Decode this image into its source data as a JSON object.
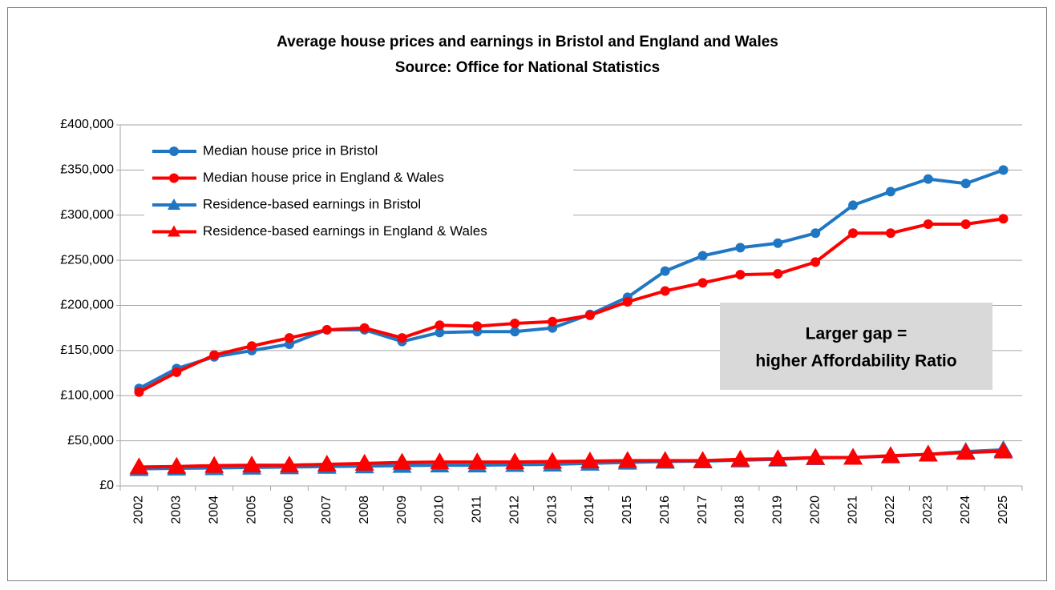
{
  "chart_data": {
    "type": "line",
    "title": "Average house prices and earnings in Bristol and England and Wales",
    "subtitle": "Source: Office for National Statistics",
    "categories": [
      "2002",
      "2003",
      "2004",
      "2005",
      "2006",
      "2007",
      "2008",
      "2009",
      "2010",
      "2011",
      "2012",
      "2013",
      "2014",
      "2015",
      "2016",
      "2017",
      "2018",
      "2019",
      "2020",
      "2021",
      "2022",
      "2023",
      "2024",
      "2025"
    ],
    "series": [
      {
        "name": "Median house price in Bristol",
        "color": "#1f77c4",
        "marker": "circle",
        "values": [
          108000,
          130000,
          143000,
          150000,
          157000,
          173000,
          173000,
          160000,
          170000,
          171000,
          171000,
          175000,
          190000,
          209000,
          238000,
          255000,
          264000,
          269000,
          280000,
          311000,
          326000,
          340000,
          335000,
          350000
        ]
      },
      {
        "name": "Median house price in England & Wales",
        "color": "#ff0000",
        "marker": "circle",
        "values": [
          104000,
          126000,
          145000,
          155000,
          164000,
          173000,
          175000,
          164000,
          178000,
          177000,
          180000,
          182000,
          189000,
          204000,
          216000,
          225000,
          234000,
          235000,
          248000,
          280000,
          280000,
          290000,
          290000,
          296000
        ]
      },
      {
        "name": "Residence-based earnings in Bristol",
        "color": "#1f77c4",
        "marker": "triangle",
        "values": [
          19000,
          19500,
          20000,
          20500,
          21000,
          21500,
          22000,
          22500,
          23000,
          23000,
          23500,
          24000,
          25000,
          26000,
          27000,
          27500,
          28500,
          29500,
          31000,
          31500,
          33000,
          35000,
          38000,
          40000
        ]
      },
      {
        "name": "Residence-based earnings in England & Wales",
        "color": "#ff0000",
        "marker": "triangle",
        "values": [
          21000,
          21500,
          22500,
          23000,
          23000,
          24000,
          25000,
          26000,
          26500,
          26500,
          26500,
          27000,
          27500,
          28000,
          28000,
          28000,
          29500,
          30000,
          31500,
          31500,
          33500,
          35000,
          37000,
          38500
        ]
      }
    ],
    "ylim": [
      0,
      400000
    ],
    "yticks": [
      {
        "value": 0,
        "label": "£0"
      },
      {
        "value": 50000,
        "label": "£50,000"
      },
      {
        "value": 100000,
        "label": "£100,000"
      },
      {
        "value": 150000,
        "label": "£150,000"
      },
      {
        "value": 200000,
        "label": "£200,000"
      },
      {
        "value": 250000,
        "label": "£250,000"
      },
      {
        "value": 300000,
        "label": "£300,000"
      },
      {
        "value": 350000,
        "label": "£350,000"
      },
      {
        "value": 400000,
        "label": "£400,000"
      }
    ],
    "grid": true,
    "legend": "upper left",
    "annotations": [
      "Larger gap =",
      "higher Affordability Ratio"
    ]
  }
}
